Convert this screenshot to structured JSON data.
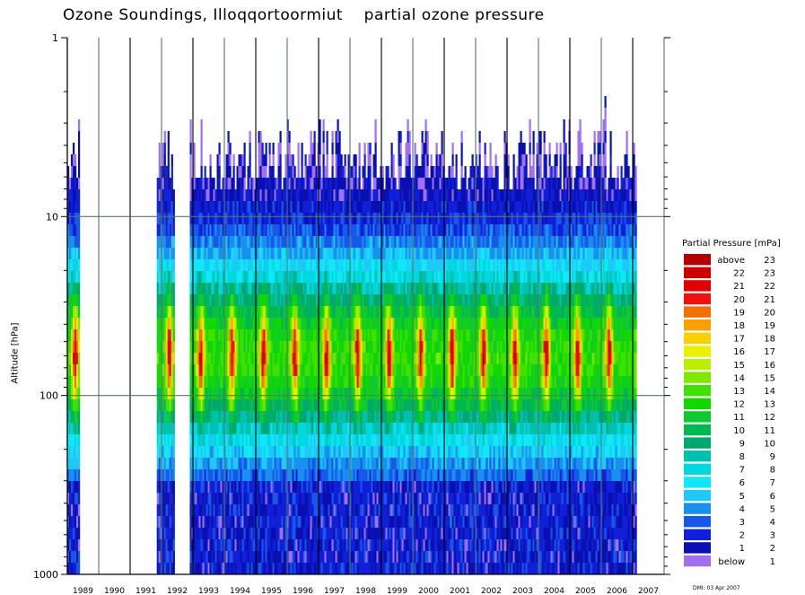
{
  "title": "Ozone Soundings, Illoqqortoormiut    partial ozone pressure",
  "footnote": "DMI: 03 Apr 2007",
  "chart_data": {
    "type": "heatmap",
    "title": "Ozone Soundings, Illoqqortoormiut    partial ozone pressure",
    "xlabel": "",
    "ylabel": "Altitude [hPa]",
    "y_scale": "log",
    "y_inverted": true,
    "ylim": [
      1000,
      1
    ],
    "y_ticks": [
      "1",
      "10",
      "100",
      "1000"
    ],
    "x_ticks": [
      "1989",
      "1990",
      "1991",
      "1992",
      "1993",
      "1994",
      "1995",
      "1996",
      "1997",
      "1998",
      "1999",
      "2000",
      "2001",
      "2002",
      "2003",
      "2004",
      "2005",
      "2006",
      "2007"
    ],
    "x_range": [
      1989,
      2008
    ],
    "grid": true,
    "data_periods": [
      [
        1989.0,
        1989.35
      ],
      [
        1991.85,
        1992.4
      ],
      [
        1992.9,
        2007.1
      ]
    ],
    "seasonal_peak_years": [
      "1992",
      "1993",
      "1994",
      "1995",
      "1996",
      "1997",
      "1998",
      "1999",
      "2000",
      "2001",
      "2002",
      "2003",
      "2004",
      "2005",
      "2006"
    ],
    "peak_pressure_level_hPa": 60,
    "legend_title": "Partial Pressure [mPa]",
    "legend_position": "right",
    "legend": [
      {
        "from": "above",
        "to": "23",
        "color": "#b50000"
      },
      {
        "from": "22",
        "to": "23",
        "color": "#cc0000"
      },
      {
        "from": "21",
        "to": "22",
        "color": "#e00000"
      },
      {
        "from": "20",
        "to": "21",
        "color": "#f01010"
      },
      {
        "from": "19",
        "to": "20",
        "color": "#f07000"
      },
      {
        "from": "18",
        "to": "19",
        "color": "#f7a000"
      },
      {
        "from": "17",
        "to": "18",
        "color": "#f8d000"
      },
      {
        "from": "16",
        "to": "17",
        "color": "#e9f000"
      },
      {
        "from": "15",
        "to": "16",
        "color": "#b8f000"
      },
      {
        "from": "14",
        "to": "15",
        "color": "#80e800"
      },
      {
        "from": "13",
        "to": "14",
        "color": "#40e000"
      },
      {
        "from": "12",
        "to": "13",
        "color": "#10d800"
      },
      {
        "from": "11",
        "to": "12",
        "color": "#10c830"
      },
      {
        "from": "10",
        "to": "11",
        "color": "#00b850"
      },
      {
        "from": "9",
        "to": "10",
        "color": "#00a870"
      },
      {
        "from": "8",
        "to": "9",
        "color": "#00c0b0"
      },
      {
        "from": "7",
        "to": "8",
        "color": "#00d8e0"
      },
      {
        "from": "6",
        "to": "7",
        "color": "#10e8f8"
      },
      {
        "from": "5",
        "to": "6",
        "color": "#20c8f8"
      },
      {
        "from": "4",
        "to": "5",
        "color": "#1890f0"
      },
      {
        "from": "3",
        "to": "4",
        "color": "#1858e8"
      },
      {
        "from": "2",
        "to": "3",
        "color": "#1020d8"
      },
      {
        "from": "1",
        "to": "2",
        "color": "#0a10b0"
      },
      {
        "from": "below",
        "to": "1",
        "color": "#a070f0"
      }
    ]
  }
}
